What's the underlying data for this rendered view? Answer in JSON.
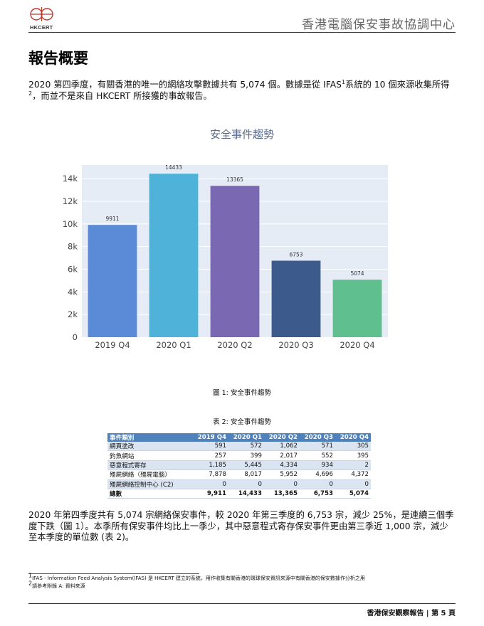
{
  "header": {
    "logo_text": "HKCERT",
    "org_name": "香港電腦保安事故協調中心"
  },
  "page_title": "報告概要",
  "para1": {
    "part1": "2020 第四季度，有關香港的唯一的網絡攻擊數據共有 5,074 個。數據是從 IFAS",
    "sup1": "1",
    "part2": "系統的 10 個來源收集所得",
    "sup2": "2",
    "part3": "，而並不是來自 HKCERT 所接獲的事故報告。"
  },
  "chart_data": {
    "type": "bar",
    "title": "安全事件趨勢",
    "categories": [
      "2019 Q4",
      "2020 Q1",
      "2020 Q2",
      "2020 Q3",
      "2020 Q4"
    ],
    "values": [
      9911,
      14433,
      13365,
      6753,
      5074
    ],
    "data_labels": [
      "9911",
      "14433",
      "13365",
      "6753",
      "5074"
    ],
    "colors": [
      "#5b8bd6",
      "#4fb3d9",
      "#7b68b3",
      "#3d5a8c",
      "#5fbf8f"
    ],
    "ylim": [
      0,
      15200
    ],
    "yticks": [
      0,
      2000,
      4000,
      6000,
      8000,
      10000,
      12000,
      14000
    ],
    "ytick_labels": [
      "0",
      "2k",
      "4k",
      "6k",
      "8k",
      "10k",
      "12k",
      "14k"
    ],
    "grid": true,
    "plot_bg": "#e5ecf6",
    "xlabel": "",
    "ylabel": ""
  },
  "caption1": "圖 1: 安全事件趨勢",
  "caption2": "表 2: 安全事件趨勢",
  "table": {
    "headers": [
      "事件類別",
      "2019 Q4",
      "2020 Q1",
      "2020 Q2",
      "2020 Q3",
      "2020 Q4"
    ],
    "rows": [
      {
        "cells": [
          "網頁塗改",
          "591",
          "572",
          "1,062",
          "571",
          "305"
        ]
      },
      {
        "cells": [
          "釣魚網站",
          "257",
          "399",
          "2,017",
          "552",
          "395"
        ]
      },
      {
        "cells": [
          "惡意程式寄存",
          "1,185",
          "5,445",
          "4,334",
          "934",
          "2"
        ]
      },
      {
        "cells": [
          "殭屍網絡（殭屍電腦）",
          "7,878",
          "8,017",
          "5,952",
          "4,696",
          "4,372"
        ]
      },
      {
        "cells": [
          "殭屍網絡控制中心 (C2)",
          "0",
          "0",
          "0",
          "0",
          "0"
        ]
      },
      {
        "cells": [
          "總數",
          "9,911",
          "14,433",
          "13,365",
          "6,753",
          "5,074"
        ]
      }
    ]
  },
  "para2": "2020 年第四季度共有 5,074 宗網絡保安事件，較 2020 年第三季度的 6,753 宗，減少 25%，是連續三個季度下跌（圖 1）。本季所有保安事件均比上一季少，其中惡意程式寄存保安事件更由第三季近 1,000 宗，減少至本季度的單位數 (表 2)。",
  "footnotes": {
    "fn1_mark": "1",
    "fn1_text": "IFAS - Information Feed Analysis System(IFAS) 是 HKCERT 建立的系統，用作收集有關香港的環球保安資訊來源中有關香港的保安數據作分析之用",
    "fn2_mark": "2",
    "fn2_text": "請參考附錄 A: 資料來源"
  },
  "footer": {
    "report_name": "香港保安觀察報告",
    "separator": " | ",
    "page_label": "第 5 頁"
  }
}
